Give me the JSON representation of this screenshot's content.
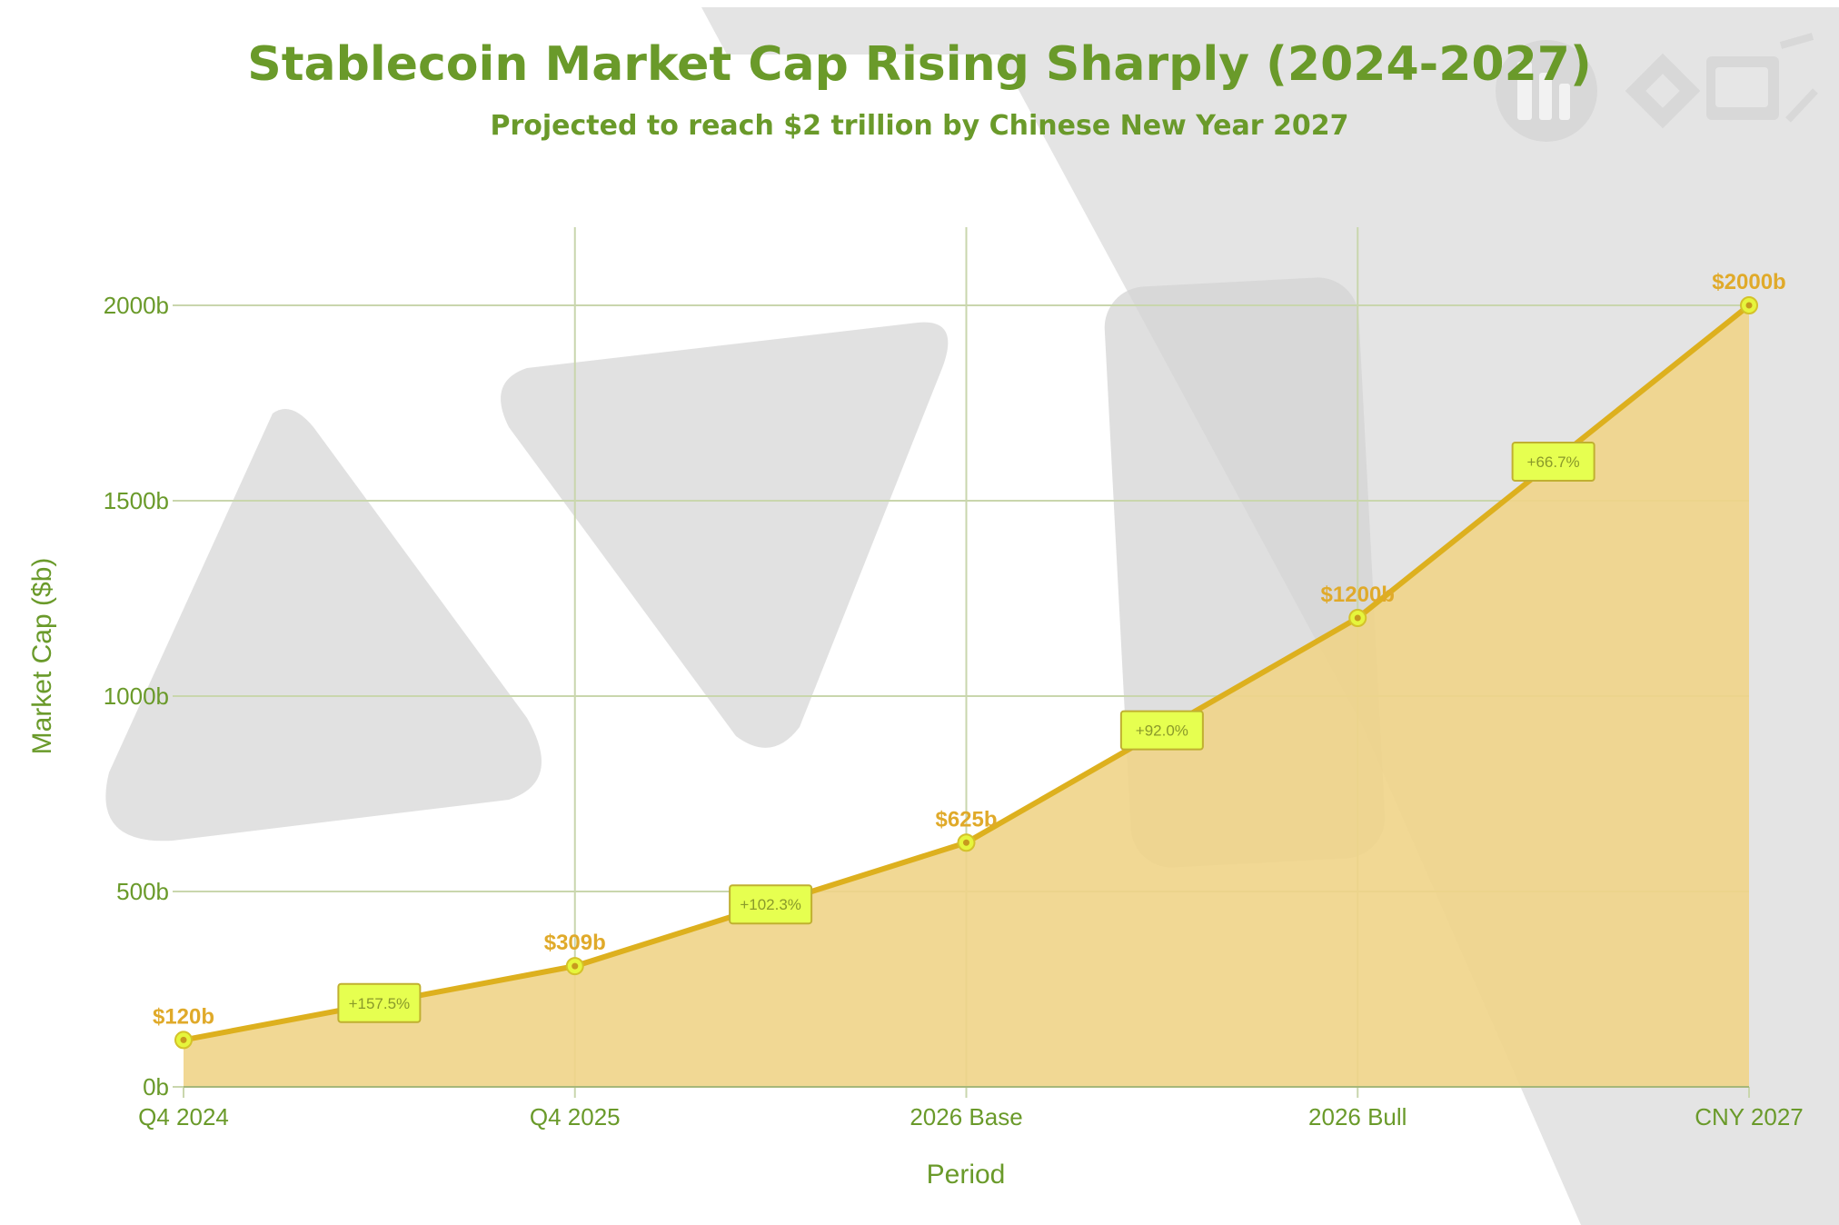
{
  "colors": {
    "title": "#6a9a2a",
    "line": "#ddb01e",
    "area": "#efd488",
    "grid": "#c9d6ad",
    "point": "#e6f53c",
    "value_label": "#e0aa2a",
    "badge_fill": "#e6ff50",
    "badge_stroke": "#c0b030",
    "watermark": "#d9d9d9"
  },
  "chart_data": {
    "type": "area",
    "title": "Stablecoin Market Cap Rising Sharply (2024-2027)",
    "subtitle": "Projected to reach $2 trillion by Chinese New Year 2027",
    "xlabel": "Period",
    "ylabel": "Market Cap ($b)",
    "categories": [
      "Q4 2024",
      "Q4 2025",
      "2026 Base",
      "2026 Bull",
      "CNY 2027"
    ],
    "values": [
      120,
      309,
      625,
      1200,
      2000
    ],
    "value_labels": [
      "$120b",
      "$309b",
      "$625b",
      "$1200b",
      "$2000b"
    ],
    "growth_labels": [
      "+157.5%",
      "+102.3%",
      "+92.0%",
      "+66.7%"
    ],
    "yticks": [
      0,
      500,
      1000,
      1500,
      2000
    ],
    "ytick_labels": [
      "0b",
      "500b",
      "1000b",
      "1500b",
      "2000b"
    ],
    "ylim": [
      0,
      2200
    ],
    "grid": true,
    "legend": "none"
  }
}
